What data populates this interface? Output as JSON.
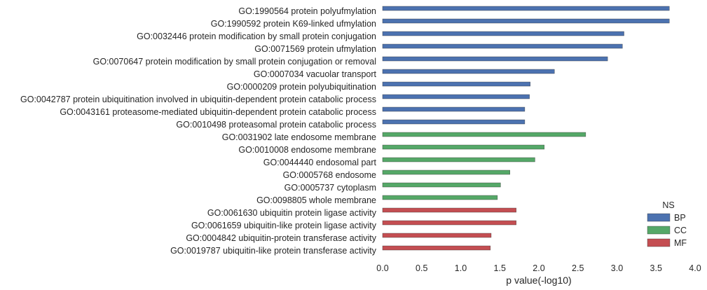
{
  "chart_data": {
    "type": "bar",
    "orientation": "horizontal",
    "xlabel": "p value(-log10)",
    "xlim": [
      0,
      4
    ],
    "xticks": [
      "0.0",
      "0.5",
      "1.0",
      "1.5",
      "2.0",
      "2.5",
      "3.0",
      "3.5",
      "4.0"
    ],
    "grid": false,
    "legend": {
      "title": "NS",
      "placement": "bottom-right",
      "entries": [
        {
          "name": "BP",
          "color": "#4c72b0"
        },
        {
          "name": "CC",
          "color": "#55a868"
        },
        {
          "name": "MF",
          "color": "#c44e52"
        }
      ]
    },
    "categories": [
      "GO:1990564 protein polyufmylation",
      "GO:1990592 protein K69-linked ufmylation",
      "GO:0032446 protein modification by small protein conjugation",
      "GO:0071569 protein ufmylation",
      "GO:0070647 protein modification by small protein conjugation or removal",
      "GO:0007034 vacuolar transport",
      "GO:0000209 protein polyubiquitination",
      "GO:0042787 protein ubiquitination involved in ubiquitin-dependent protein catabolic process",
      "GO:0043161 proteasome-mediated ubiquitin-dependent protein catabolic process",
      "GO:0010498 proteasomal protein catabolic process",
      "GO:0031902 late endosome membrane",
      "GO:0010008 endosome membrane",
      "GO:0044440 endosomal part",
      "GO:0005768 endosome",
      "GO:0005737 cytoplasm",
      "GO:0098805 whole membrane",
      "GO:0061630 ubiquitin protein ligase activity",
      "GO:0061659 ubiquitin-like protein ligase activity",
      "GO:0004842 ubiquitin-protein transferase activity",
      "GO:0019787 ubiquitin-like protein transferase activity"
    ],
    "values": [
      3.67,
      3.67,
      3.09,
      3.07,
      2.88,
      2.2,
      1.89,
      1.88,
      1.82,
      1.82,
      2.6,
      2.07,
      1.95,
      1.63,
      1.51,
      1.47,
      1.71,
      1.71,
      1.39,
      1.38
    ],
    "groups": [
      "BP",
      "BP",
      "BP",
      "BP",
      "BP",
      "BP",
      "BP",
      "BP",
      "BP",
      "BP",
      "CC",
      "CC",
      "CC",
      "CC",
      "CC",
      "CC",
      "MF",
      "MF",
      "MF",
      "MF"
    ]
  }
}
